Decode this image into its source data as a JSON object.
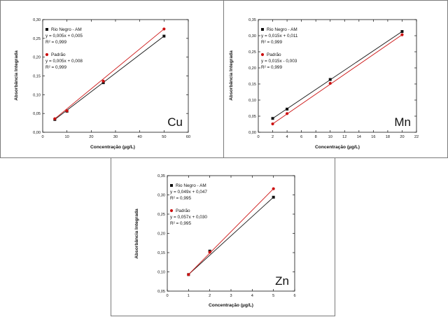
{
  "chart_data": [
    {
      "type": "scatter",
      "element": "Cu",
      "xlabel": "Concentração (µg/L)",
      "ylabel": "Absorbância Integrada",
      "xlim": [
        0,
        60
      ],
      "ylim": [
        0,
        0.3
      ],
      "xticks": [
        "0",
        "10",
        "20",
        "30",
        "40",
        "50",
        "60"
      ],
      "yticks": [
        "0,00",
        "0,05",
        "0,10",
        "0,15",
        "0,20",
        "0,25",
        "0,30"
      ],
      "series": [
        {
          "name": "Rio Negro - AM",
          "color": "#111111",
          "marker": "square",
          "equation": "y = 0,005x + 0,005",
          "r2": "R² = 0,999",
          "x": [
            5,
            10,
            25,
            50
          ],
          "y": [
            0.034,
            0.056,
            0.132,
            0.256
          ]
        },
        {
          "name": "Padrão",
          "color": "#cc1111",
          "marker": "circle",
          "equation": "y = 0,005x + 0,008",
          "r2": "R² = 0,999",
          "x": [
            5,
            10,
            25,
            50
          ],
          "y": [
            0.036,
            0.057,
            0.136,
            0.275
          ]
        }
      ],
      "legend_position": "top-left"
    },
    {
      "type": "scatter",
      "element": "Mn",
      "xlabel": "Concentração (µg/L)",
      "ylabel": "Absorbância Integrada",
      "xlim": [
        0,
        22
      ],
      "ylim": [
        0,
        0.35
      ],
      "xticks": [
        "0",
        "2",
        "4",
        "6",
        "8",
        "10",
        "12",
        "14",
        "16",
        "18",
        "20",
        "22"
      ],
      "yticks": [
        "0,00",
        "0,05",
        "0,10",
        "0,15",
        "0,20",
        "0,25",
        "0,30",
        "0,35"
      ],
      "series": [
        {
          "name": "Rio Negro - AM",
          "color": "#111111",
          "marker": "square",
          "equation": "y = 0,015x + 0,011",
          "r2": "R² = 0,999",
          "x": [
            2,
            4,
            10,
            20
          ],
          "y": [
            0.043,
            0.072,
            0.164,
            0.313
          ]
        },
        {
          "name": "Padrão",
          "color": "#cc1111",
          "marker": "circle",
          "equation": "y = 0,015x - 0,003",
          "r2": "R² = 0,999",
          "x": [
            2,
            4,
            10,
            20
          ],
          "y": [
            0.026,
            0.058,
            0.152,
            0.303
          ]
        }
      ],
      "legend_position": "top-left"
    },
    {
      "type": "scatter",
      "element": "Zn",
      "xlabel": "Concentração (µg/L)",
      "ylabel": "Absorbância Integrada",
      "xlim": [
        0,
        6
      ],
      "ylim": [
        0.05,
        0.35
      ],
      "xticks": [
        "0",
        "1",
        "2",
        "3",
        "4",
        "5",
        "6"
      ],
      "yticks": [
        "0,05",
        "0,10",
        "0,15",
        "0,20",
        "0,25",
        "0,30",
        "0,35"
      ],
      "series": [
        {
          "name": "Rio Negro - AM",
          "color": "#111111",
          "marker": "square",
          "equation": "y = 0,049x + 0,047",
          "r2": "R² = 0,995",
          "x": [
            1,
            2,
            5
          ],
          "y": [
            0.093,
            0.154,
            0.294
          ]
        },
        {
          "name": "Padrão",
          "color": "#cc1111",
          "marker": "circle",
          "equation": "y = 0,057x + 0,030",
          "r2": "R² = 0,995",
          "x": [
            1,
            2,
            5
          ],
          "y": [
            0.093,
            0.151,
            0.316
          ]
        }
      ],
      "legend_position": "top-left"
    }
  ]
}
